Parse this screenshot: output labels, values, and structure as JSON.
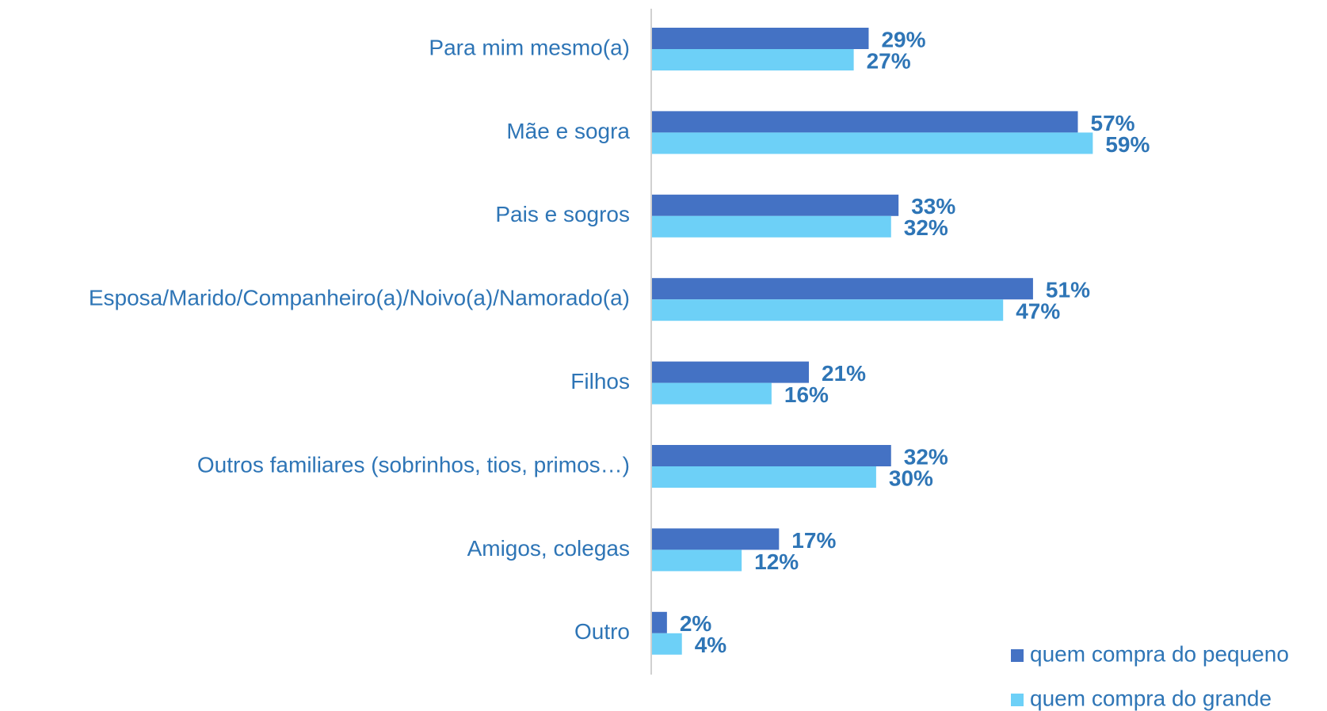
{
  "chart_data": {
    "type": "bar",
    "orientation": "horizontal",
    "categories": [
      "Para mim mesmo(a)",
      "Mãe e sogra",
      "Pais e sogros",
      "Esposa/Marido/Companheiro(a)/Noivo(a)/Namorado(a)",
      "Filhos",
      "Outros familiares (sobrinhos, tios, primos…)",
      "Amigos, colegas",
      "Outro"
    ],
    "series": [
      {
        "name": "quem compra do pequeno",
        "color": "#4472c4",
        "values": [
          29,
          57,
          33,
          51,
          21,
          32,
          17,
          2
        ],
        "value_labels": [
          "29%",
          "57%",
          "33%",
          "51%",
          "21%",
          "32%",
          "17%",
          "2%"
        ]
      },
      {
        "name": "quem compra do grande",
        "color": "#6dd0f7",
        "values": [
          27,
          59,
          32,
          47,
          16,
          30,
          12,
          4
        ],
        "value_labels": [
          "27%",
          "59%",
          "32%",
          "47%",
          "16%",
          "30%",
          "12%",
          "4%"
        ]
      }
    ],
    "legend": "bottom-right"
  }
}
